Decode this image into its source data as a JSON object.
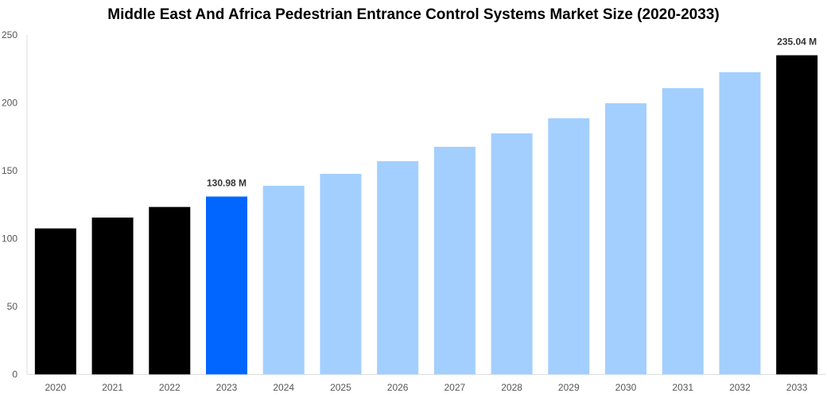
{
  "chart_data": {
    "type": "bar",
    "title": "Middle East And Africa Pedestrian Entrance Control Systems Market Size (2020-2033)",
    "xlabel": "",
    "ylabel": "",
    "ylim": [
      0,
      250
    ],
    "yticks": [
      0,
      50,
      100,
      150,
      200,
      250
    ],
    "grid": false,
    "categories": [
      "2020",
      "2021",
      "2022",
      "2023",
      "2024",
      "2025",
      "2026",
      "2027",
      "2028",
      "2029",
      "2030",
      "2031",
      "2032",
      "2033"
    ],
    "values": [
      107.5,
      115.5,
      123.3,
      130.98,
      138.9,
      147.7,
      157.0,
      167.6,
      177.5,
      188.6,
      199.7,
      210.8,
      222.5,
      235.04
    ],
    "bar_colors": [
      "#000000",
      "#000000",
      "#000000",
      "#0066ff",
      "#a3cfff",
      "#a3cfff",
      "#a3cfff",
      "#a3cfff",
      "#a3cfff",
      "#a3cfff",
      "#a3cfff",
      "#a3cfff",
      "#a3cfff",
      "#000000"
    ],
    "data_labels": [
      {
        "category": "2023",
        "text": "130.98 M"
      },
      {
        "category": "2033",
        "text": "235.04 M"
      }
    ]
  }
}
